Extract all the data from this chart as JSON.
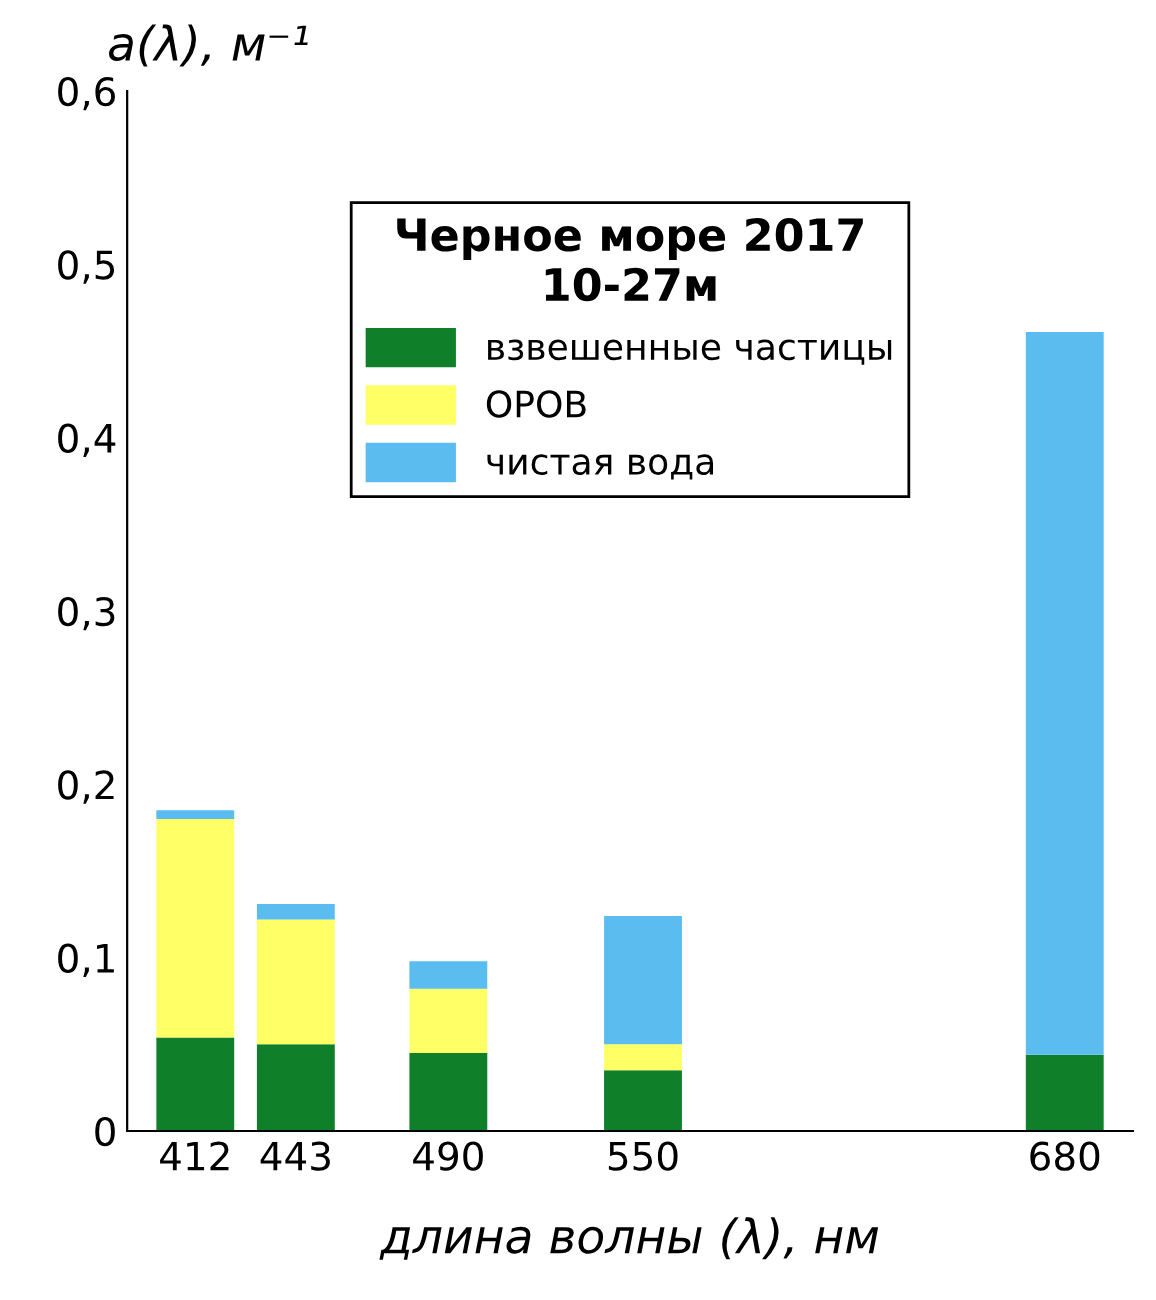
{
  "chart_data": {
    "type": "bar",
    "stacked": true,
    "xlabel": "длина волны (λ), нм",
    "ylabel": "a(λ), м⁻¹",
    "legend_title": "Черное море 2017\n10-27м",
    "x": [
      412,
      443,
      490,
      550,
      680
    ],
    "series": [
      {
        "name": "взвешенные частицы",
        "color": "#0f7f2a",
        "values": [
          0.054,
          0.05,
          0.045,
          0.035,
          0.044
        ]
      },
      {
        "name": "ОРОВ",
        "color": "#ffff66",
        "values": [
          0.126,
          0.072,
          0.037,
          0.015,
          0
        ]
      },
      {
        "name": "чистая вода",
        "color": "#5bbcf0",
        "values": [
          0.005,
          0.009,
          0.016,
          0.074,
          0.417
        ]
      }
    ],
    "xlim": [
      391,
      701
    ],
    "xticks": [
      412,
      443,
      490,
      550,
      680
    ],
    "ylim": [
      0,
      0.6
    ],
    "yticks": [
      {
        "value": 0,
        "label": "0"
      },
      {
        "value": 0.1,
        "label": "0,1"
      },
      {
        "value": 0.2,
        "label": "0,2"
      },
      {
        "value": 0.3,
        "label": "0,3"
      },
      {
        "value": 0.4,
        "label": "0,4"
      },
      {
        "value": 0.5,
        "label": "0,5"
      },
      {
        "value": 0.6,
        "label": "0,6"
      }
    ],
    "grid": false,
    "legend": "top"
  }
}
